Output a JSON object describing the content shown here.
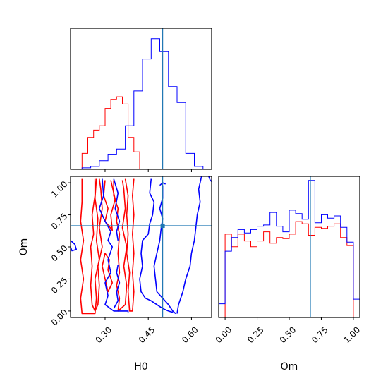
{
  "colors": {
    "red": "#ff0000",
    "blue": "#0000ff",
    "truth": "#1f77b4",
    "frame": "#000000"
  },
  "chart_data": [
    {
      "type": "histogram",
      "panel": "top-left",
      "title": "",
      "xlim": [
        0.18,
        0.67
      ],
      "series": [
        {
          "color": "red",
          "edges": [
            0.22,
            0.24,
            0.26,
            0.28,
            0.3,
            0.32,
            0.34,
            0.36,
            0.38,
            0.4,
            0.42
          ],
          "counts": [
            0.11,
            0.22,
            0.27,
            0.3,
            0.42,
            0.48,
            0.5,
            0.45,
            0.22,
            0.12
          ]
        },
        {
          "color": "blue",
          "edges": [
            0.22,
            0.25,
            0.28,
            0.31,
            0.34,
            0.37,
            0.4,
            0.43,
            0.46,
            0.49,
            0.52,
            0.55,
            0.58,
            0.61,
            0.64
          ],
          "counts": [
            0.01,
            0.02,
            0.06,
            0.1,
            0.14,
            0.3,
            0.54,
            0.76,
            0.9,
            0.81,
            0.57,
            0.46,
            0.11,
            0.02
          ]
        }
      ],
      "truth_x": 0.5
    },
    {
      "type": "contour",
      "panel": "bottom-left",
      "xlabel": "H0",
      "ylabel": "Om",
      "xlim": [
        0.18,
        0.67
      ],
      "ylim": [
        -0.05,
        1.05
      ],
      "x_ticks": [
        "0.30",
        "0.45",
        "0.60"
      ],
      "x_tick_values": [
        0.3,
        0.45,
        0.6
      ],
      "y_ticks": [
        "0.00",
        "0.25",
        "0.50",
        "0.75",
        "1.00"
      ],
      "y_tick_values": [
        0.0,
        0.25,
        0.5,
        0.75,
        1.0
      ],
      "truth": {
        "x": 0.5,
        "y": 0.665
      },
      "contours": [
        {
          "color": "red",
          "points": [
            [
              0.22,
              1.03
            ],
            [
              0.22,
              0.85
            ],
            [
              0.215,
              0.7
            ],
            [
              0.225,
              0.55
            ],
            [
              0.215,
              0.4
            ],
            [
              0.225,
              0.25
            ],
            [
              0.215,
              0.1
            ],
            [
              0.22,
              -0.02
            ],
            [
              0.265,
              -0.02
            ],
            [
              0.27,
              0.1
            ],
            [
              0.265,
              0.25
            ],
            [
              0.28,
              0.4
            ],
            [
              0.27,
              0.55
            ],
            [
              0.275,
              0.72
            ],
            [
              0.265,
              0.88
            ],
            [
              0.27,
              1.03
            ]
          ]
        },
        {
          "color": "red",
          "points": [
            [
              0.265,
              1.03
            ],
            [
              0.265,
              0.9
            ],
            [
              0.255,
              0.75
            ],
            [
              0.26,
              0.6
            ],
            [
              0.25,
              0.5
            ],
            [
              0.255,
              0.35
            ],
            [
              0.25,
              0.2
            ],
            [
              0.255,
              0.05
            ],
            [
              0.265,
              0.0
            ],
            [
              0.275,
              0.05
            ],
            [
              0.28,
              0.2
            ],
            [
              0.275,
              0.35
            ],
            [
              0.29,
              0.5
            ],
            [
              0.28,
              0.65
            ],
            [
              0.29,
              0.8
            ],
            [
              0.285,
              0.95
            ],
            [
              0.28,
              1.03
            ]
          ]
        },
        {
          "color": "red",
          "points": [
            [
              0.3,
              1.02
            ],
            [
              0.295,
              0.9
            ],
            [
              0.31,
              0.8
            ],
            [
              0.3,
              0.7
            ],
            [
              0.325,
              0.63
            ],
            [
              0.32,
              0.75
            ],
            [
              0.335,
              0.87
            ],
            [
              0.32,
              1.02
            ]
          ]
        },
        {
          "color": "red",
          "points": [
            [
              0.33,
              1.02
            ],
            [
              0.33,
              0.9
            ],
            [
              0.345,
              0.8
            ],
            [
              0.34,
              0.7
            ],
            [
              0.35,
              0.6
            ],
            [
              0.345,
              0.45
            ],
            [
              0.35,
              0.3
            ],
            [
              0.34,
              0.2
            ],
            [
              0.35,
              0.1
            ],
            [
              0.345,
              0.0
            ],
            [
              0.37,
              0.05
            ],
            [
              0.375,
              0.2
            ],
            [
              0.365,
              0.35
            ],
            [
              0.375,
              0.5
            ],
            [
              0.36,
              0.65
            ],
            [
              0.37,
              0.8
            ],
            [
              0.365,
              0.95
            ],
            [
              0.36,
              1.02
            ]
          ]
        },
        {
          "color": "red",
          "points": [
            [
              0.37,
              1.03
            ],
            [
              0.38,
              0.9
            ],
            [
              0.375,
              0.75
            ],
            [
              0.38,
              0.6
            ],
            [
              0.375,
              0.45
            ],
            [
              0.385,
              0.3
            ],
            [
              0.38,
              0.15
            ],
            [
              0.385,
              0.0
            ],
            [
              0.395,
              0.0
            ],
            [
              0.4,
              0.15
            ],
            [
              0.395,
              0.3
            ],
            [
              0.4,
              0.45
            ],
            [
              0.395,
              0.6
            ],
            [
              0.4,
              0.75
            ],
            [
              0.395,
              0.9
            ],
            [
              0.4,
              1.03
            ]
          ]
        },
        {
          "color": "red",
          "points": [
            [
              0.3,
              0.45
            ],
            [
              0.315,
              0.4
            ],
            [
              0.31,
              0.32
            ],
            [
              0.325,
              0.22
            ],
            [
              0.31,
              0.15
            ],
            [
              0.3,
              0.25
            ],
            [
              0.29,
              0.35
            ],
            [
              0.3,
              0.45
            ]
          ]
        },
        {
          "color": "blue",
          "points": [
            [
              0.18,
              0.55
            ],
            [
              0.195,
              0.52
            ],
            [
              0.2,
              0.48
            ],
            [
              0.185,
              0.47
            ],
            [
              0.18,
              0.5
            ]
          ]
        },
        {
          "color": "blue",
          "points": [
            [
              0.29,
              1.03
            ],
            [
              0.295,
              0.9
            ],
            [
              0.28,
              0.8
            ],
            [
              0.3,
              0.7
            ],
            [
              0.32,
              0.62
            ],
            [
              0.31,
              0.55
            ],
            [
              0.325,
              0.5
            ],
            [
              0.31,
              0.4
            ],
            [
              0.32,
              0.3
            ],
            [
              0.3,
              0.22
            ],
            [
              0.31,
              0.12
            ],
            [
              0.3,
              0.05
            ],
            [
              0.33,
              0.0
            ],
            [
              0.38,
              0.0
            ],
            [
              0.38,
              -0.01
            ]
          ]
        },
        {
          "color": "blue",
          "points": [
            [
              0.33,
              1.03
            ],
            [
              0.345,
              0.92
            ],
            [
              0.335,
              0.8
            ],
            [
              0.35,
              0.7
            ],
            [
              0.34,
              0.62
            ],
            [
              0.345,
              0.55
            ]
          ]
        },
        {
          "color": "blue",
          "points": [
            [
              0.33,
              0.02
            ],
            [
              0.345,
              0.08
            ],
            [
              0.34,
              0.15
            ],
            [
              0.35,
              0.22
            ],
            [
              0.34,
              0.3
            ],
            [
              0.345,
              0.36
            ]
          ]
        },
        {
          "color": "blue",
          "points": [
            [
              0.46,
              1.03
            ],
            [
              0.455,
              0.92
            ],
            [
              0.47,
              0.85
            ],
            [
              0.465,
              0.75
            ],
            [
              0.455,
              0.68
            ],
            [
              0.45,
              0.6
            ],
            [
              0.43,
              0.55
            ],
            [
              0.425,
              0.45
            ],
            [
              0.43,
              0.35
            ],
            [
              0.42,
              0.25
            ],
            [
              0.425,
              0.15
            ],
            [
              0.44,
              0.1
            ],
            [
              0.46,
              0.08
            ],
            [
              0.48,
              0.05
            ],
            [
              0.5,
              0.02
            ],
            [
              0.52,
              0.0
            ],
            [
              0.535,
              -0.01
            ]
          ]
        },
        {
          "color": "blue",
          "points": [
            [
              0.5,
              0.98
            ],
            [
              0.5,
              0.88
            ],
            [
              0.49,
              0.8
            ],
            [
              0.5,
              0.72
            ],
            [
              0.495,
              0.65
            ],
            [
              0.49,
              0.55
            ],
            [
              0.48,
              0.45
            ],
            [
              0.47,
              0.35
            ],
            [
              0.475,
              0.25
            ],
            [
              0.48,
              0.15
            ],
            [
              0.5,
              0.1
            ],
            [
              0.52,
              0.05
            ],
            [
              0.535,
              0.0
            ],
            [
              0.545,
              -0.02
            ]
          ]
        },
        {
          "color": "blue",
          "points": [
            [
              0.49,
              0.98
            ],
            [
              0.5,
              1.0
            ],
            [
              0.51,
              0.99
            ]
          ]
        },
        {
          "color": "blue",
          "points": [
            [
              0.635,
              1.05
            ],
            [
              0.625,
              0.95
            ],
            [
              0.63,
              0.85
            ],
            [
              0.62,
              0.75
            ],
            [
              0.615,
              0.65
            ],
            [
              0.61,
              0.55
            ],
            [
              0.6,
              0.45
            ],
            [
              0.595,
              0.35
            ],
            [
              0.58,
              0.25
            ],
            [
              0.57,
              0.15
            ],
            [
              0.555,
              0.05
            ],
            [
              0.55,
              -0.02
            ]
          ]
        },
        {
          "color": "blue",
          "points": [
            [
              0.66,
              1.05
            ],
            [
              0.665,
              1.02
            ],
            [
              0.67,
              1.01
            ]
          ]
        }
      ]
    },
    {
      "type": "histogram",
      "panel": "bottom-right",
      "xlabel": "Om",
      "xlim": [
        -0.05,
        1.05
      ],
      "x_ticks": [
        "0.00",
        "0.25",
        "0.50",
        "0.75",
        "1.00"
      ],
      "x_tick_values": [
        0.0,
        0.25,
        0.5,
        0.75,
        1.0
      ],
      "series": [
        {
          "color": "red",
          "edges": [
            0.0,
            0.05,
            0.1,
            0.15,
            0.2,
            0.25,
            0.3,
            0.35,
            0.4,
            0.45,
            0.5,
            0.55,
            0.6,
            0.65,
            0.7,
            0.75,
            0.8,
            0.85,
            0.9,
            0.95,
            1.0
          ],
          "counts": [
            0.73,
            0.62,
            0.73,
            0.67,
            0.62,
            0.67,
            0.75,
            0.65,
            0.7,
            0.69,
            0.73,
            0.84,
            0.82,
            0.72,
            0.79,
            0.78,
            0.8,
            0.82,
            0.7,
            0.63
          ]
        },
        {
          "color": "blue",
          "edges": [
            -0.05,
            0.0,
            0.05,
            0.1,
            0.15,
            0.2,
            0.25,
            0.3,
            0.35,
            0.4,
            0.45,
            0.5,
            0.55,
            0.6,
            0.65,
            0.7,
            0.75,
            0.8,
            0.85,
            0.9,
            0.95,
            1.0,
            1.05
          ],
          "counts": [
            0.12,
            0.58,
            0.7,
            0.77,
            0.74,
            0.77,
            0.8,
            0.81,
            0.92,
            0.8,
            0.75,
            0.94,
            0.91,
            0.86,
            1.2,
            0.83,
            0.9,
            0.87,
            0.89,
            0.79,
            0.66,
            0.16
          ]
        }
      ],
      "truth_x": 0.665
    }
  ]
}
